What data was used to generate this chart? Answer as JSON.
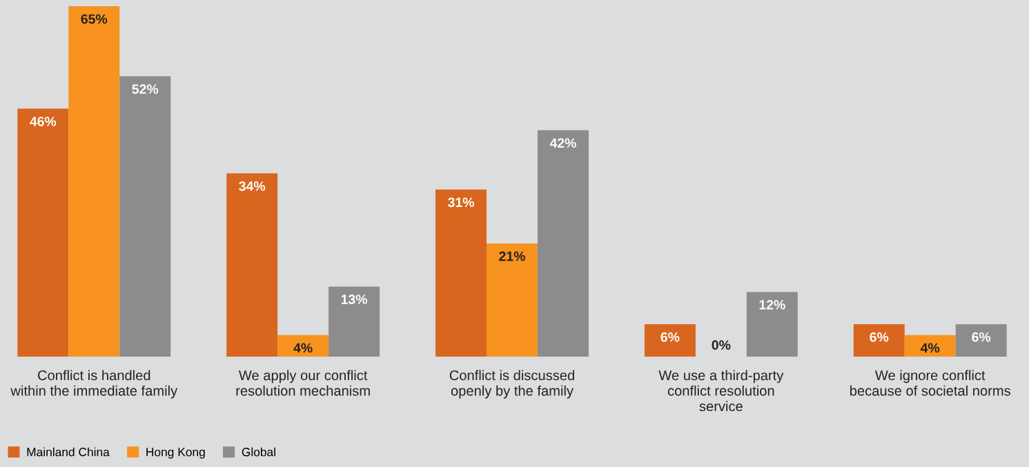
{
  "chart_data": {
    "type": "bar",
    "categories": [
      "Conflict is handled\nwithin the immediate family",
      "We apply our conflict\nresolution mechanism",
      "Conflict is discussed\nopenly by the family",
      "We use a third-party\nconflict resolution\nservice",
      "We ignore conflict\nbecause of societal norms"
    ],
    "series": [
      {
        "name": "Mainland China",
        "color": "#d9661e",
        "values": [
          46,
          34,
          31,
          6,
          6
        ],
        "value_labels": [
          "46%",
          "34%",
          "31%",
          "6%",
          "6%"
        ]
      },
      {
        "name": "Hong Kong",
        "color": "#f7931e",
        "values": [
          65,
          4,
          21,
          0,
          4
        ],
        "value_labels": [
          "65%",
          "4%",
          "21%",
          "0%",
          "4%"
        ]
      },
      {
        "name": "Global",
        "color": "#8c8c8e",
        "values": [
          52,
          13,
          42,
          12,
          6
        ],
        "value_labels": [
          "52%",
          "13%",
          "42%",
          "12%",
          "6%"
        ]
      }
    ],
    "grid": false,
    "legend": "bottom left"
  }
}
